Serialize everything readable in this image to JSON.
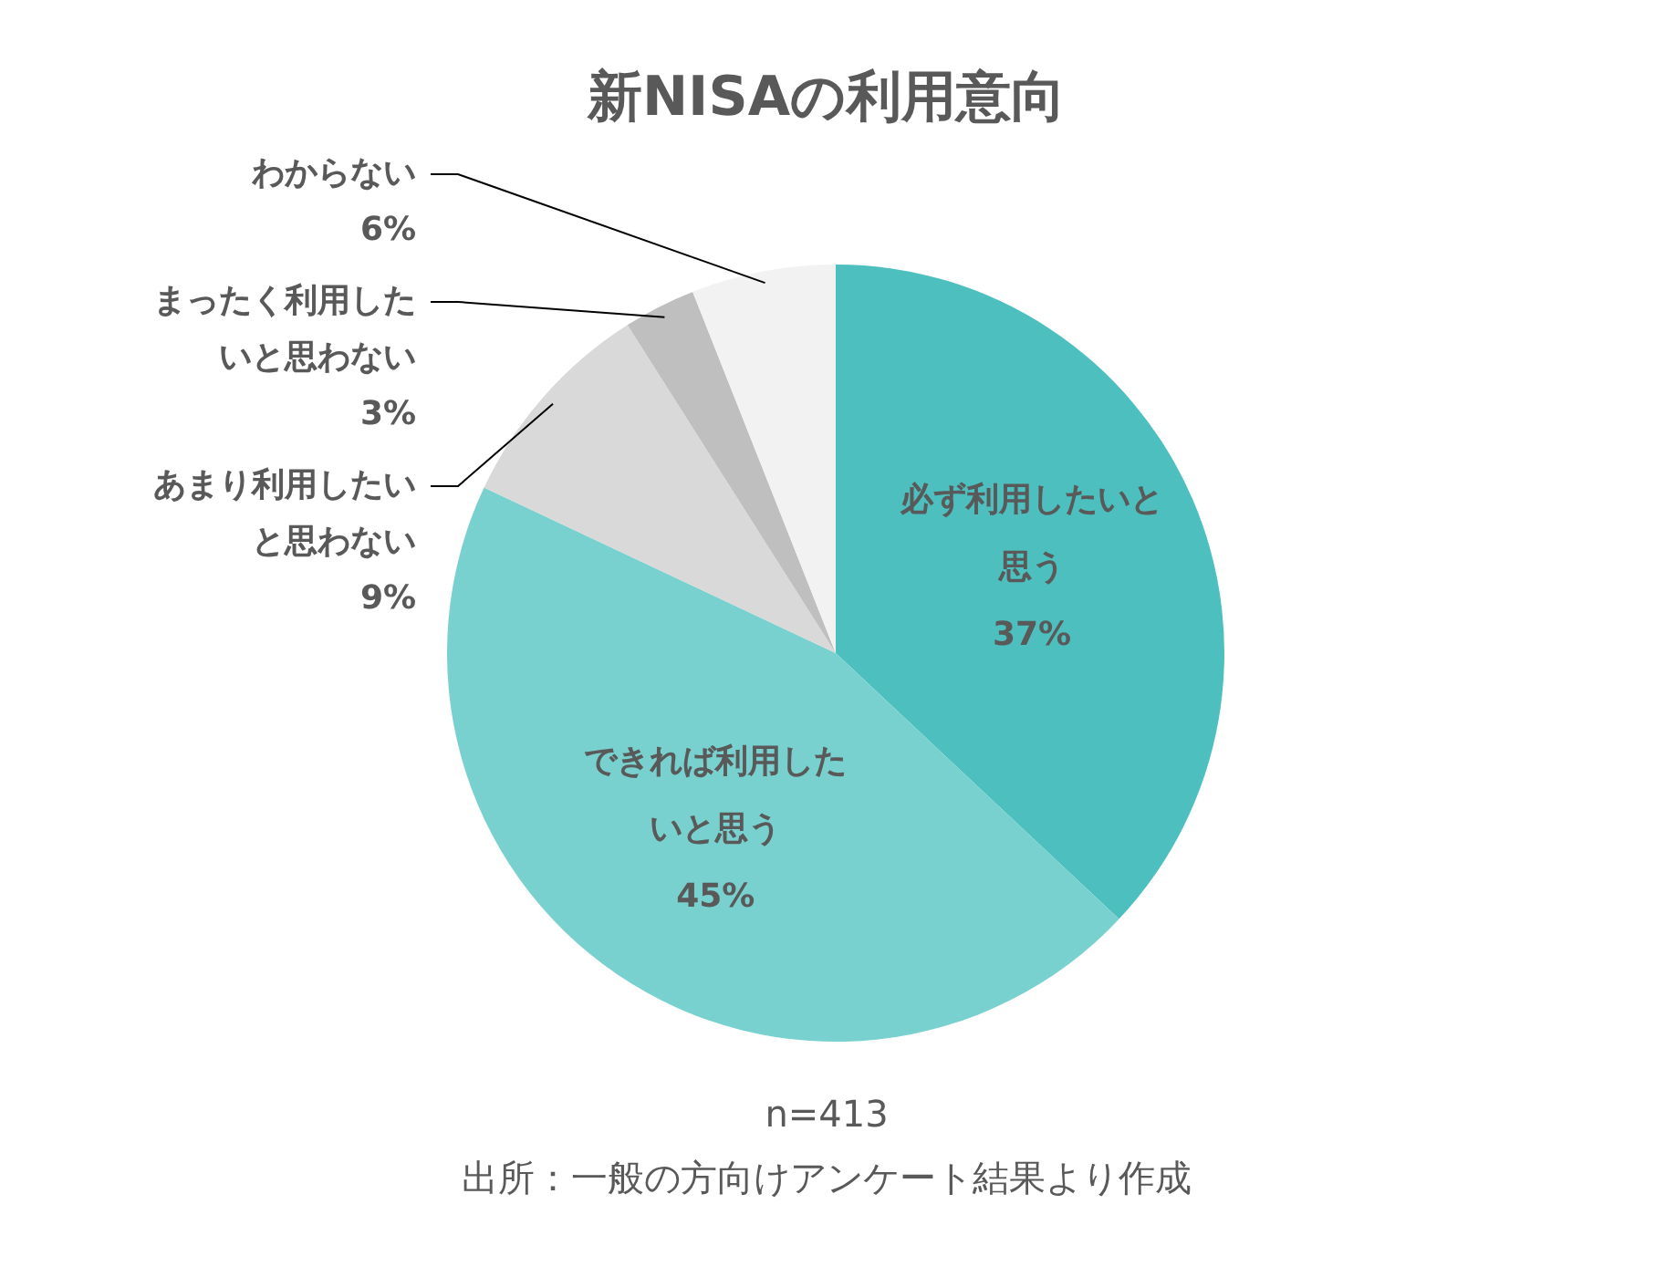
{
  "chart_data": {
    "type": "pie",
    "title": "新NISAの利用意向",
    "categories": [
      "必ず利用したいと思う",
      "できれば利用したいと思う",
      "あまり利用したいと思わない",
      "まったく利用したいと思わない",
      "わからない"
    ],
    "values": [
      37,
      45,
      9,
      3,
      6
    ],
    "colors": [
      "#4dbfbf",
      "#79d1cf",
      "#d9d9d9",
      "#bfbfbf",
      "#f2f2f2"
    ],
    "value_labels": [
      "37%",
      "45%",
      "9%",
      "3%",
      "6%"
    ],
    "annotations": [
      "n=413",
      "出所：一般の方向けアンケート結果より作成"
    ]
  }
}
